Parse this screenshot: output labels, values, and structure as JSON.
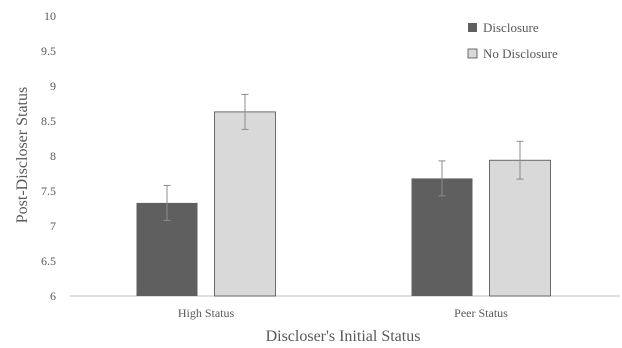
{
  "chart_data": {
    "type": "bar",
    "title": "",
    "xlabel": "Discloser's Initial Status",
    "ylabel": "Post-Discloser Status",
    "categories": [
      "High Status",
      "Peer Status"
    ],
    "ylim": [
      6,
      10
    ],
    "yticks": [
      "6",
      "6.5",
      "7",
      "7.5",
      "8",
      "8.5",
      "9",
      "9.5",
      "10"
    ],
    "grid": false,
    "legend_position": "top-right",
    "series": [
      {
        "name": "Disclosure",
        "values": [
          7.33,
          7.68
        ],
        "errors": [
          0.25,
          0.25
        ],
        "color": "#5f5f5f"
      },
      {
        "name": "No Disclosure",
        "values": [
          8.63,
          7.94
        ],
        "errors": [
          0.25,
          0.27
        ],
        "color": "#d9d9d9"
      }
    ]
  }
}
